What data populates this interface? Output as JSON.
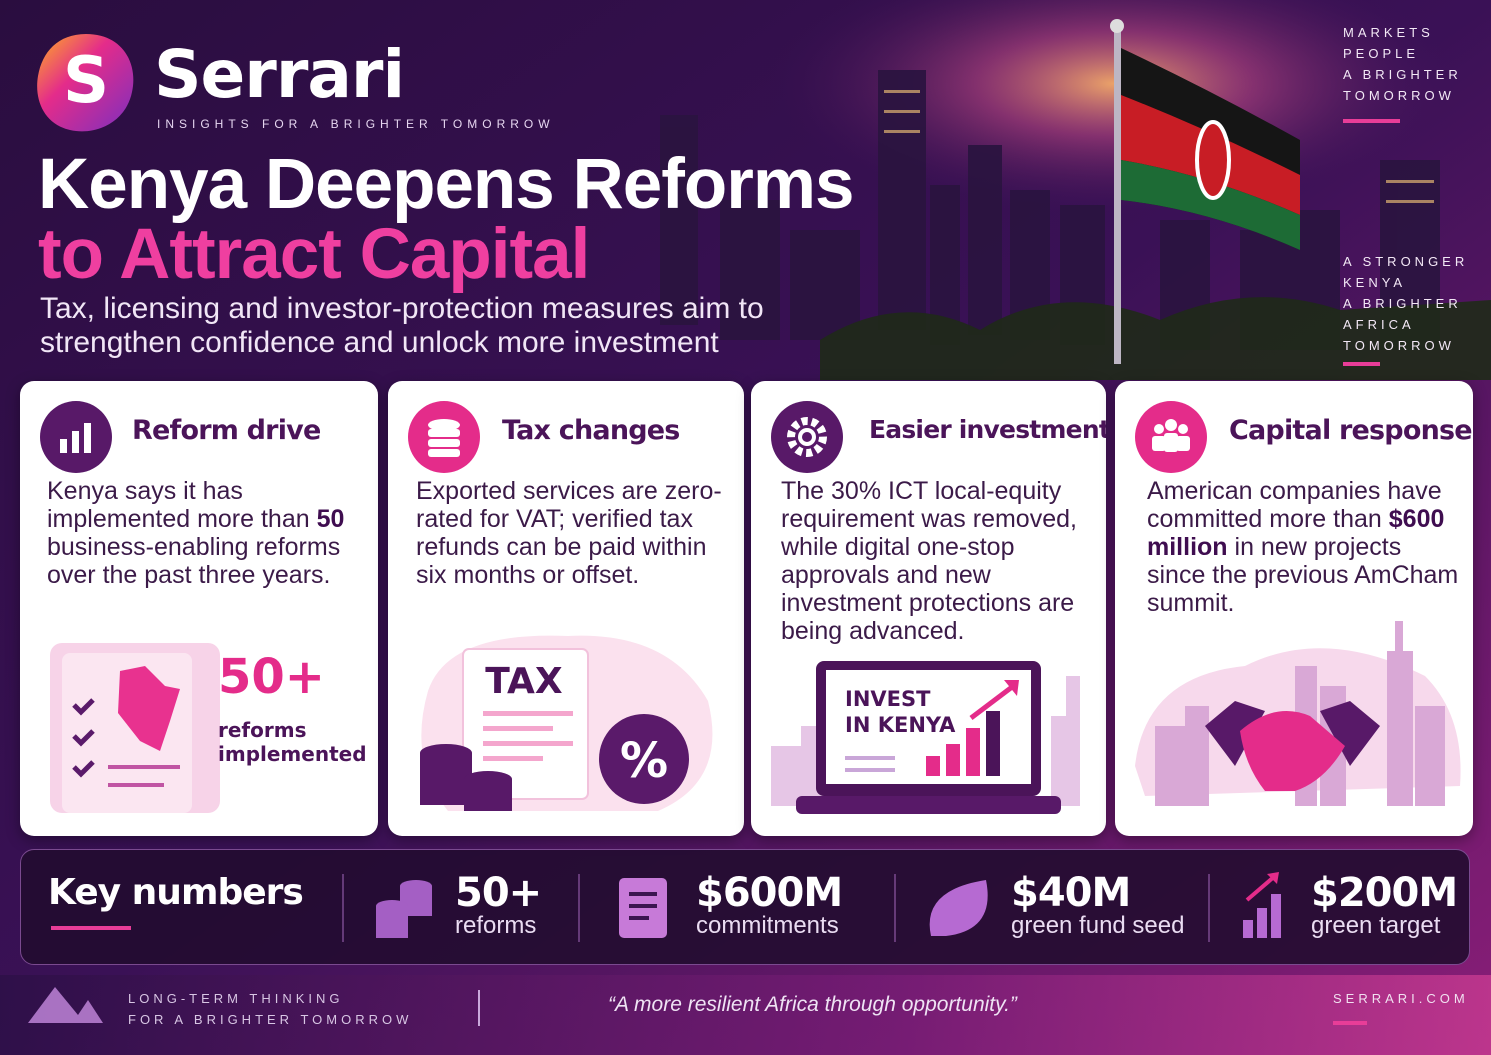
{
  "brand": {
    "logo_letter": "S",
    "name": "Serrari",
    "tagline": "INSIGHTS FOR A BRIGHTER TOMORROW"
  },
  "side_top": [
    "MARKETS",
    "PEOPLE",
    "A BRIGHTER",
    "TOMORROW"
  ],
  "side_mid": [
    "A STRONGER",
    "KENYA",
    "A BRIGHTER",
    "AFRICA",
    "TOMORROW"
  ],
  "header": {
    "title_line1": "Kenya Deepens Reforms",
    "title_line2": "to Attract Capital",
    "subtitle": "Tax, licensing and investor-protection measures aim to strengthen confidence and unlock more investment"
  },
  "cards": [
    {
      "title": "Reform drive",
      "body": [
        {
          "text": "Kenya says it has implemented more than ",
          "bold": false
        },
        {
          "text": "50",
          "bold": true
        },
        {
          "text": " business-enabling reforms over the past three years.",
          "bold": false
        }
      ],
      "art": [
        "50+",
        "reforms",
        "implemented"
      ]
    },
    {
      "title": "Tax changes",
      "body": [
        {
          "text": "Exported services are zero-rated for VAT; verified tax refunds can be paid within six months or offset.",
          "bold": false
        }
      ],
      "art": [
        "TAX",
        "%"
      ]
    },
    {
      "title": "Easier investment",
      "body": [
        {
          "text": "The 30% ICT local-equity requirement was removed, while digital one-stop approvals and new investment protections are being advanced.",
          "bold": false
        }
      ],
      "art": [
        "INVEST",
        "IN KENYA"
      ]
    },
    {
      "title": "Capital response",
      "body": [
        {
          "text": "American companies have committed more than ",
          "bold": false
        },
        {
          "text": "$600 million",
          "bold": true
        },
        {
          "text": " in new projects since the previous AmCham summit.",
          "bold": false
        }
      ],
      "art": []
    }
  ],
  "key_numbers": {
    "title": "Key numbers",
    "items": [
      {
        "value": "50+",
        "label": "reforms"
      },
      {
        "value": "$600M",
        "label": "commitments"
      },
      {
        "value": "$40M",
        "label": "green fund seed"
      },
      {
        "value": "$200M",
        "label": "green target"
      }
    ]
  },
  "footer": {
    "left": [
      "LONG-TERM THINKING",
      "FOR A BRIGHTER TOMORROW"
    ],
    "quote": "“A more resilient Africa through opportunity.”",
    "site": "SERRARI.COM"
  }
}
